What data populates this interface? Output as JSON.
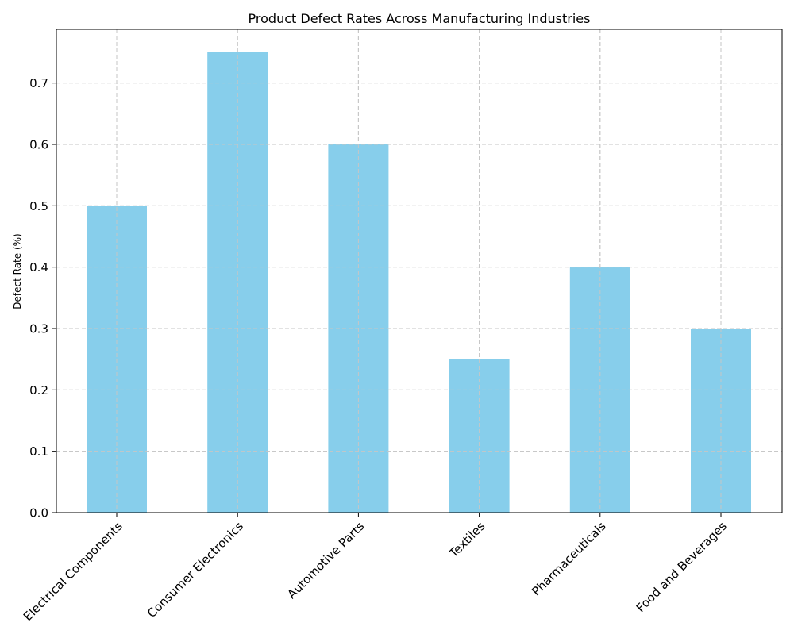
{
  "chart_data": {
    "type": "bar",
    "title": "Product Defect Rates Across Manufacturing Industries",
    "xlabel": "",
    "ylabel": "Defect Rate (%)",
    "categories": [
      "Electrical Components",
      "Consumer Electronics",
      "Automotive Parts",
      "Textiles",
      "Pharmaceuticals",
      "Food and Beverages"
    ],
    "values": [
      0.5,
      0.75,
      0.6,
      0.25,
      0.4,
      0.3
    ],
    "ylim": [
      0,
      0.7875
    ],
    "yticks": [
      0.0,
      0.1,
      0.2,
      0.3,
      0.4,
      0.5,
      0.6,
      0.7
    ],
    "ytick_labels": [
      "0.0",
      "0.1",
      "0.2",
      "0.3",
      "0.4",
      "0.5",
      "0.6",
      "0.7"
    ],
    "grid": true,
    "bar_color": "#87CEEB"
  }
}
